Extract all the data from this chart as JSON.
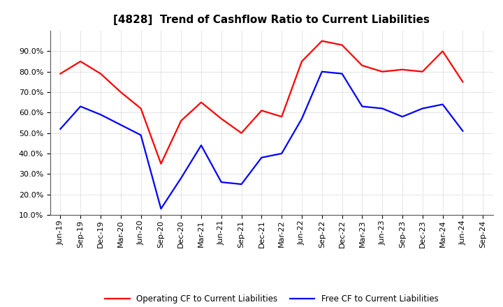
{
  "title": "[4828]  Trend of Cashflow Ratio to Current Liabilities",
  "x_labels": [
    "Jun-19",
    "Sep-19",
    "Dec-19",
    "Mar-20",
    "Jun-20",
    "Sep-20",
    "Dec-20",
    "Mar-21",
    "Jun-21",
    "Sep-21",
    "Dec-21",
    "Mar-22",
    "Jun-22",
    "Sep-22",
    "Dec-22",
    "Mar-23",
    "Jun-23",
    "Sep-23",
    "Dec-23",
    "Mar-24",
    "Jun-24",
    "Sep-24"
  ],
  "operating_cf": [
    79.0,
    85.0,
    79.0,
    70.0,
    62.0,
    35.0,
    56.0,
    65.0,
    57.0,
    50.0,
    61.0,
    58.0,
    85.0,
    95.0,
    93.0,
    83.0,
    80.0,
    81.0,
    80.0,
    90.0,
    75.0,
    null
  ],
  "free_cf": [
    52.0,
    63.0,
    59.0,
    54.0,
    49.0,
    13.0,
    28.0,
    44.0,
    26.0,
    25.0,
    38.0,
    40.0,
    57.0,
    80.0,
    79.0,
    63.0,
    62.0,
    58.0,
    62.0,
    64.0,
    51.0,
    null
  ],
  "operating_color": "#ff0000",
  "free_color": "#0000ff",
  "ylim_min": 10.0,
  "ylim_max": 100.0,
  "yticks": [
    10.0,
    20.0,
    30.0,
    40.0,
    50.0,
    60.0,
    70.0,
    80.0,
    90.0
  ],
  "legend_operating": "Operating CF to Current Liabilities",
  "legend_free": "Free CF to Current Liabilities",
  "background_color": "#ffffff",
  "grid_color": "#b0b0b0",
  "title_fontsize": 11,
  "tick_fontsize": 8,
  "legend_fontsize": 8.5,
  "linewidth": 1.6
}
